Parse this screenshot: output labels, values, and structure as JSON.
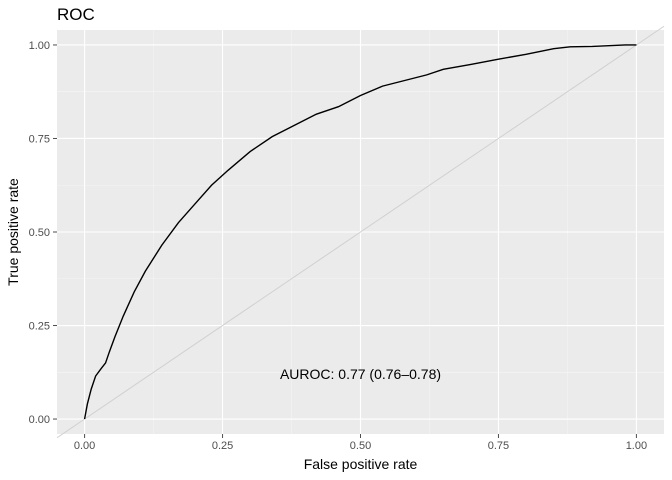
{
  "chart_data": {
    "type": "line",
    "title": "ROC",
    "xlabel": "False positive rate",
    "ylabel": "True positive rate",
    "xlim": [
      -0.05,
      1.05
    ],
    "ylim": [
      -0.04,
      1.04
    ],
    "grid": true,
    "x_ticks": [
      0,
      0.25,
      0.5,
      0.75,
      1
    ],
    "y_ticks": [
      0,
      0.25,
      0.5,
      0.75,
      1
    ],
    "x_tick_labels": [
      "0.00",
      "0.25",
      "0.50",
      "0.75",
      "1.00"
    ],
    "y_tick_labels": [
      "0.00",
      "0.25",
      "0.50",
      "0.75",
      "1.00"
    ],
    "series": [
      {
        "color": "#000000",
        "x": [
          0,
          0.005,
          0.012,
          0.02,
          0.03,
          0.038,
          0.045,
          0.055,
          0.07,
          0.09,
          0.11,
          0.14,
          0.17,
          0.2,
          0.23,
          0.26,
          0.3,
          0.34,
          0.38,
          0.42,
          0.46,
          0.5,
          0.54,
          0.58,
          0.62,
          0.65,
          0.7,
          0.75,
          0.8,
          0.85,
          0.88,
          0.92,
          0.95,
          0.98,
          1.0
        ],
        "y": [
          0,
          0.04,
          0.08,
          0.115,
          0.135,
          0.15,
          0.18,
          0.22,
          0.275,
          0.34,
          0.395,
          0.465,
          0.525,
          0.575,
          0.625,
          0.665,
          0.715,
          0.755,
          0.785,
          0.815,
          0.835,
          0.865,
          0.89,
          0.905,
          0.92,
          0.935,
          0.948,
          0.962,
          0.975,
          0.99,
          0.995,
          0.996,
          0.998,
          1.0,
          1.0
        ]
      }
    ],
    "reference_line": {
      "x": [
        -0.05,
        1.05
      ],
      "y": [
        -0.05,
        1.05
      ],
      "color": "#d0d0d0"
    },
    "annotations": [
      {
        "text": "AUROC: 0.77 (0.76–0.78)",
        "x": 0.5,
        "y": 0.12
      }
    ],
    "colors": {
      "panel": "#ebebeb",
      "grid_major": "#ffffff",
      "grid_minor": "#f5f5f5",
      "tick": "#4d4d4d"
    }
  }
}
